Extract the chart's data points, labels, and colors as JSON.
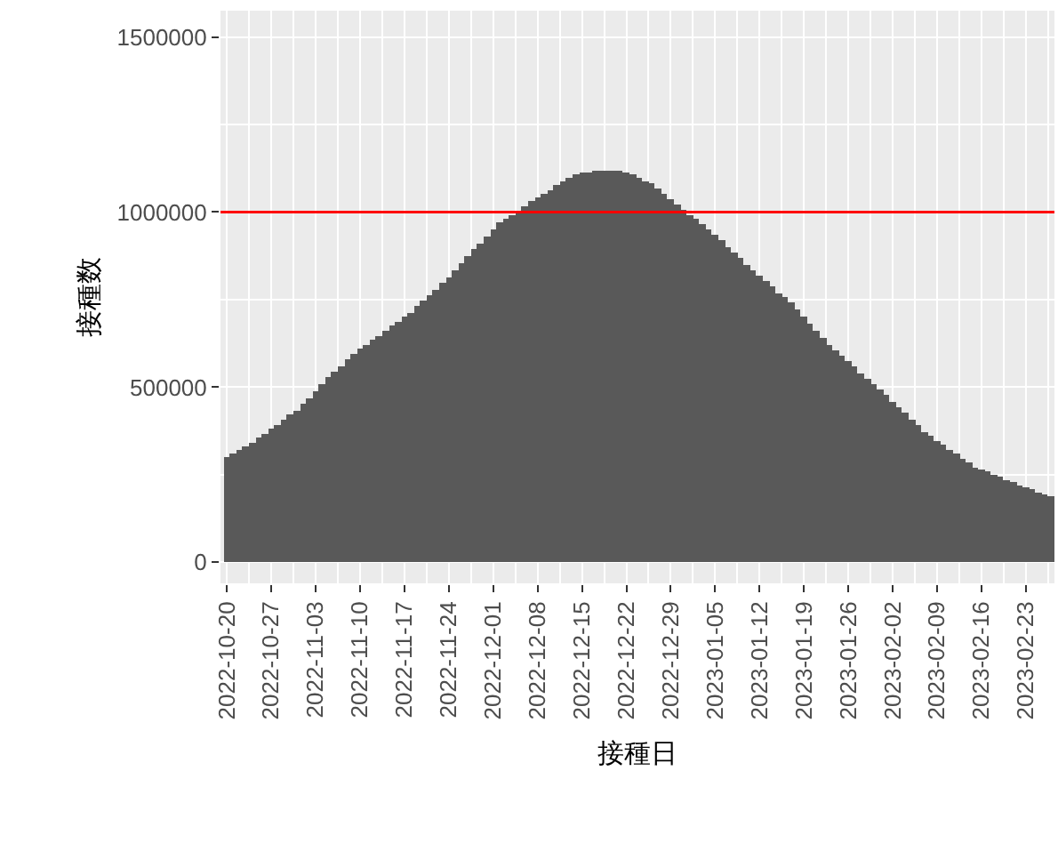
{
  "chart_data": {
    "type": "bar",
    "xlabel": "接種日",
    "ylabel": "接種数",
    "x": [
      "2022-10-20",
      "2022-10-21",
      "2022-10-22",
      "2022-10-23",
      "2022-10-24",
      "2022-10-25",
      "2022-10-26",
      "2022-10-27",
      "2022-10-28",
      "2022-10-29",
      "2022-10-30",
      "2022-10-31",
      "2022-11-01",
      "2022-11-02",
      "2022-11-03",
      "2022-11-04",
      "2022-11-05",
      "2022-11-06",
      "2022-11-07",
      "2022-11-08",
      "2022-11-09",
      "2022-11-10",
      "2022-11-11",
      "2022-11-12",
      "2022-11-13",
      "2022-11-14",
      "2022-11-15",
      "2022-11-16",
      "2022-11-17",
      "2022-11-18",
      "2022-11-19",
      "2022-11-20",
      "2022-11-21",
      "2022-11-22",
      "2022-11-23",
      "2022-11-24",
      "2022-11-25",
      "2022-11-26",
      "2022-11-27",
      "2022-11-28",
      "2022-11-29",
      "2022-11-30",
      "2022-12-01",
      "2022-12-02",
      "2022-12-03",
      "2022-12-04",
      "2022-12-05",
      "2022-12-06",
      "2022-12-07",
      "2022-12-08",
      "2022-12-09",
      "2022-12-10",
      "2022-12-11",
      "2022-12-12",
      "2022-12-13",
      "2022-12-14",
      "2022-12-15",
      "2022-12-16",
      "2022-12-17",
      "2022-12-18",
      "2022-12-19",
      "2022-12-20",
      "2022-12-21",
      "2022-12-22",
      "2022-12-23",
      "2022-12-24",
      "2022-12-25",
      "2022-12-26",
      "2022-12-27",
      "2022-12-28",
      "2022-12-29",
      "2022-12-30",
      "2022-12-31",
      "2023-01-01",
      "2023-01-02",
      "2023-01-03",
      "2023-01-04",
      "2023-01-05",
      "2023-01-06",
      "2023-01-07",
      "2023-01-08",
      "2023-01-09",
      "2023-01-10",
      "2023-01-11",
      "2023-01-12",
      "2023-01-13",
      "2023-01-14",
      "2023-01-15",
      "2023-01-16",
      "2023-01-17",
      "2023-01-18",
      "2023-01-19",
      "2023-01-20",
      "2023-01-21",
      "2023-01-22",
      "2023-01-23",
      "2023-01-24",
      "2023-01-25",
      "2023-01-26",
      "2023-01-27",
      "2023-01-28",
      "2023-01-29",
      "2023-01-30",
      "2023-01-31",
      "2023-02-01",
      "2023-02-02",
      "2023-02-03",
      "2023-02-04",
      "2023-02-05",
      "2023-02-06",
      "2023-02-07",
      "2023-02-08",
      "2023-02-09",
      "2023-02-10",
      "2023-02-11",
      "2023-02-12",
      "2023-02-13",
      "2023-02-14",
      "2023-02-15",
      "2023-02-16",
      "2023-02-17",
      "2023-02-18",
      "2023-02-19",
      "2023-02-20",
      "2023-02-21",
      "2023-02-22",
      "2023-02-23",
      "2023-02-24",
      "2023-02-25",
      "2023-02-26",
      "2023-02-27"
    ],
    "values": [
      300000,
      310000,
      320000,
      330000,
      340000,
      355000,
      367000,
      380000,
      393000,
      406000,
      420000,
      434000,
      452000,
      470000,
      490000,
      508000,
      527000,
      545000,
      562000,
      580000,
      595000,
      608000,
      621000,
      634000,
      648000,
      661000,
      674000,
      687000,
      700000,
      714000,
      730000,
      746000,
      762000,
      777000,
      796000,
      815000,
      834000,
      853000,
      873000,
      893000,
      912000,
      932000,
      950000,
      969000,
      980000,
      992000,
      1003000,
      1018000,
      1032000,
      1042000,
      1053000,
      1063000,
      1075000,
      1087000,
      1099000,
      1110000,
      1113000,
      1115000,
      1117000,
      1118000,
      1118000,
      1118000,
      1117000,
      1114000,
      1107000,
      1099000,
      1090000,
      1080000,
      1066000,
      1050000,
      1035000,
      1020000,
      1006000,
      992000,
      979000,
      966000,
      952000,
      935000,
      918000,
      901000,
      884000,
      867000,
      850000,
      834000,
      818000,
      802000,
      786000,
      770000,
      755000,
      740000,
      720000,
      700000,
      680000,
      660000,
      640000,
      621000,
      605000,
      589000,
      573000,
      557000,
      541000,
      525000,
      509000,
      493000,
      476000,
      459000,
      442000,
      425000,
      408000,
      391000,
      374000,
      361000,
      348000,
      335000,
      322000,
      309000,
      296000,
      284000,
      272000,
      265000,
      258000,
      250000,
      243000,
      236000,
      228000,
      221000,
      214000,
      207000,
      200000,
      194000,
      187000
    ],
    "color": "#595959",
    "xlim": [
      "2022-10-19T00:00",
      "2023-02-27T12:00"
    ],
    "xticks": [
      "2022-10-20",
      "2022-10-27",
      "2022-11-03",
      "2022-11-10",
      "2022-11-17",
      "2022-11-24",
      "2022-12-01",
      "2022-12-08",
      "2022-12-15",
      "2022-12-22",
      "2022-12-29",
      "2023-01-05",
      "2023-01-12",
      "2023-01-19",
      "2023-01-26",
      "2023-02-02",
      "2023-02-09",
      "2023-02-16",
      "2023-02-23"
    ],
    "ylim": [
      -60000,
      1575000
    ],
    "yticks": [
      0,
      500000,
      1000000,
      1500000
    ],
    "grid": true,
    "ref_lines": [
      {
        "axis": "y",
        "value": 1000000,
        "color": "#ff0000"
      }
    ]
  }
}
